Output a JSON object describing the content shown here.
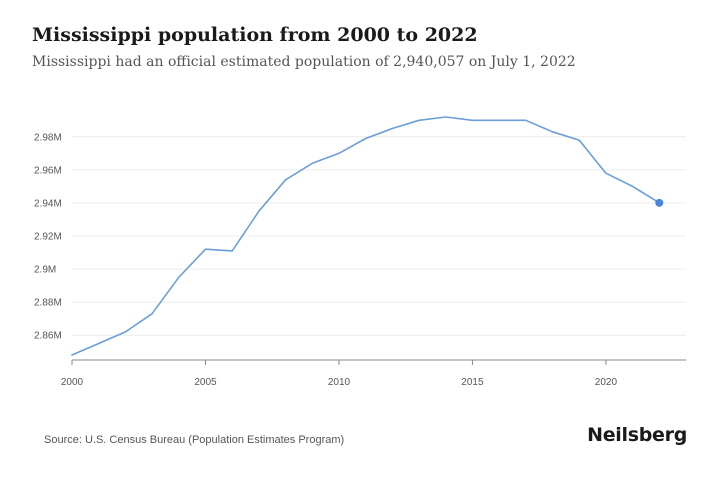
{
  "header": {
    "title": "Mississippi population from 2000 to 2022",
    "subtitle": "Mississippi had an official estimated population of 2,940,057 on July 1, 2022"
  },
  "footer": {
    "source": "Source: U.S. Census Bureau (Population Estimates Program)",
    "brand": "Neilsberg"
  },
  "colors": {
    "line": "#6a9fd8",
    "point": "#4a86e0",
    "grid": "#ececec",
    "axis": "#888888"
  },
  "chart_data": {
    "type": "line",
    "title": "Mississippi population from 2000 to 2022",
    "subtitle": "Mississippi had an official estimated population of 2,940,057 on July 1, 2022",
    "xlabel": "",
    "ylabel": "",
    "xlim": [
      2000,
      2023
    ],
    "ylim": [
      2845000,
      2995000
    ],
    "grid": true,
    "x_ticks": [
      {
        "value": 2000,
        "label": "2000"
      },
      {
        "value": 2005,
        "label": "2005"
      },
      {
        "value": 2010,
        "label": "2010"
      },
      {
        "value": 2015,
        "label": "2015"
      },
      {
        "value": 2020,
        "label": "2020"
      }
    ],
    "y_ticks": [
      {
        "value": 2860000,
        "label": "2.86M"
      },
      {
        "value": 2880000,
        "label": "2.88M"
      },
      {
        "value": 2900000,
        "label": "2.9M"
      },
      {
        "value": 2920000,
        "label": "2.92M"
      },
      {
        "value": 2940000,
        "label": "2.94M"
      },
      {
        "value": 2960000,
        "label": "2.96M"
      },
      {
        "value": 2980000,
        "label": "2.98M"
      }
    ],
    "x": [
      2000,
      2001,
      2002,
      2003,
      2004,
      2005,
      2006,
      2007,
      2008,
      2009,
      2010,
      2011,
      2012,
      2013,
      2014,
      2015,
      2016,
      2017,
      2018,
      2019,
      2020,
      2021,
      2022
    ],
    "series": [
      {
        "values": [
          2848000,
          2855000,
          2862000,
          2873000,
          2895000,
          2912000,
          2911000,
          2935000,
          2954000,
          2964000,
          2970000,
          2979000,
          2985000,
          2990000,
          2992000,
          2990000,
          2990000,
          2990000,
          2983000,
          2978000,
          2958000,
          2950000,
          2940057
        ]
      }
    ],
    "highlight": {
      "x": 2022,
      "y": 2940057
    }
  }
}
